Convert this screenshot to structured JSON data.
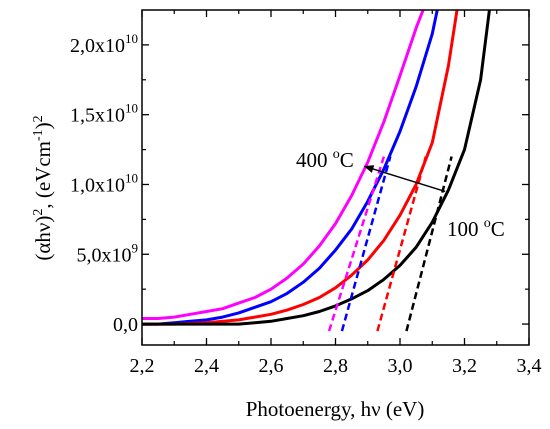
{
  "chart_data": {
    "type": "line",
    "title": "",
    "xlabel": "Photoenergy, hν (eV)",
    "ylabel": {
      "base": "(αhν)",
      "sup1": "2",
      "mid": ", (eVcm",
      "sup2": "-1",
      "end": ")",
      "sup3": "2"
    },
    "xlim": [
      2.2,
      3.4
    ],
    "ylim": [
      -1500000000.0,
      22500000000.0
    ],
    "xticks": [
      2.2,
      2.4,
      2.6,
      2.8,
      3.0,
      3.2,
      3.4
    ],
    "xtick_labels": [
      "2,2",
      "2,4",
      "2,6",
      "2,8",
      "3,0",
      "3,2",
      "3,4"
    ],
    "yticks": [
      0,
      5000000000.0,
      10000000000.0,
      15000000000.0,
      20000000000.0
    ],
    "ytick_labels": [
      {
        "mant": "0,0",
        "exp": ""
      },
      {
        "mant": "5,0x10",
        "exp": "9"
      },
      {
        "mant": "1,0x10",
        "exp": "10"
      },
      {
        "mant": "1,5x10",
        "exp": "10"
      },
      {
        "mant": "2,0x10",
        "exp": "10"
      }
    ],
    "grid": false,
    "legend": "none",
    "series": [
      {
        "color": "#ff00ff",
        "x": [
          2.2,
          2.25,
          2.3,
          2.35,
          2.4,
          2.45,
          2.5,
          2.55,
          2.6,
          2.65,
          2.7,
          2.75,
          2.8,
          2.85,
          2.9,
          2.95,
          3.0,
          3.05,
          3.08
        ],
        "y": [
          400000000.0,
          400000000.0,
          500000000.0,
          700000000.0,
          900000000.0,
          1100000000.0,
          1500000000.0,
          1900000000.0,
          2500000000.0,
          3300000000.0,
          4300000000.0,
          5600000000.0,
          7200000000.0,
          9200000000.0,
          11600000000.0,
          14500000000.0,
          17800000000.0,
          21200000000.0,
          23000000000.0
        ]
      },
      {
        "color": "#0000ff",
        "x": [
          2.2,
          2.25,
          2.3,
          2.35,
          2.4,
          2.45,
          2.5,
          2.55,
          2.6,
          2.65,
          2.7,
          2.75,
          2.8,
          2.85,
          2.9,
          2.95,
          3.0,
          3.05,
          3.1,
          3.12
        ],
        "y": [
          0,
          0,
          100000000.0,
          200000000.0,
          300000000.0,
          500000000.0,
          800000000.0,
          1200000000.0,
          1600000000.0,
          2200000000.0,
          3000000000.0,
          4000000000.0,
          5300000000.0,
          6800000000.0,
          8800000000.0,
          11100000000.0,
          13800000000.0,
          17000000000.0,
          20800000000.0,
          23000000000.0
        ]
      },
      {
        "color": "#ff0000",
        "x": [
          2.2,
          2.3,
          2.4,
          2.5,
          2.55,
          2.6,
          2.65,
          2.7,
          2.75,
          2.8,
          2.85,
          2.9,
          2.95,
          3.0,
          3.05,
          3.1,
          3.15,
          3.18
        ],
        "y": [
          0,
          0,
          100000000.0,
          300000000.0,
          500000000.0,
          700000000.0,
          1000000000.0,
          1400000000.0,
          1900000000.0,
          2600000000.0,
          3500000000.0,
          4600000000.0,
          6000000000.0,
          7800000000.0,
          10000000000.0,
          13000000000.0,
          18500000000.0,
          23000000000.0
        ]
      },
      {
        "color": "#000000",
        "x": [
          2.2,
          2.3,
          2.4,
          2.5,
          2.55,
          2.6,
          2.65,
          2.7,
          2.75,
          2.8,
          2.85,
          2.9,
          2.95,
          3.0,
          3.05,
          3.1,
          3.15,
          3.2,
          3.25,
          3.28
        ],
        "y": [
          0,
          0,
          0,
          0,
          100000000.0,
          200000000.0,
          400000000.0,
          600000000.0,
          900000000.0,
          1300000000.0,
          1800000000.0,
          2400000000.0,
          3200000000.0,
          4200000000.0,
          5500000000.0,
          7300000000.0,
          9600000000.0,
          12500000000.0,
          17500000000.0,
          23000000000.0
        ]
      }
    ],
    "fit_lines": [
      {
        "color": "#ff00ff",
        "x": [
          2.78,
          2.95
        ],
        "y": [
          -500000000.0,
          12000000000.0
        ]
      },
      {
        "color": "#0000ff",
        "x": [
          2.82,
          2.97
        ],
        "y": [
          -500000000.0,
          12000000000.0
        ]
      },
      {
        "color": "#ff0000",
        "x": [
          2.93,
          3.08
        ],
        "y": [
          -500000000.0,
          12000000000.0
        ]
      },
      {
        "color": "#000000",
        "x": [
          3.02,
          3.16
        ],
        "y": [
          -500000000.0,
          12000000000.0
        ]
      }
    ],
    "annotations": [
      {
        "base": "400 ",
        "sup": "o",
        "unit": "C"
      },
      {
        "base": "100 ",
        "sup": "o",
        "unit": "C"
      }
    ],
    "arrow": {
      "from": [
        3.14,
        9500000000.0
      ],
      "to": [
        2.89,
        11300000000.0
      ]
    }
  }
}
